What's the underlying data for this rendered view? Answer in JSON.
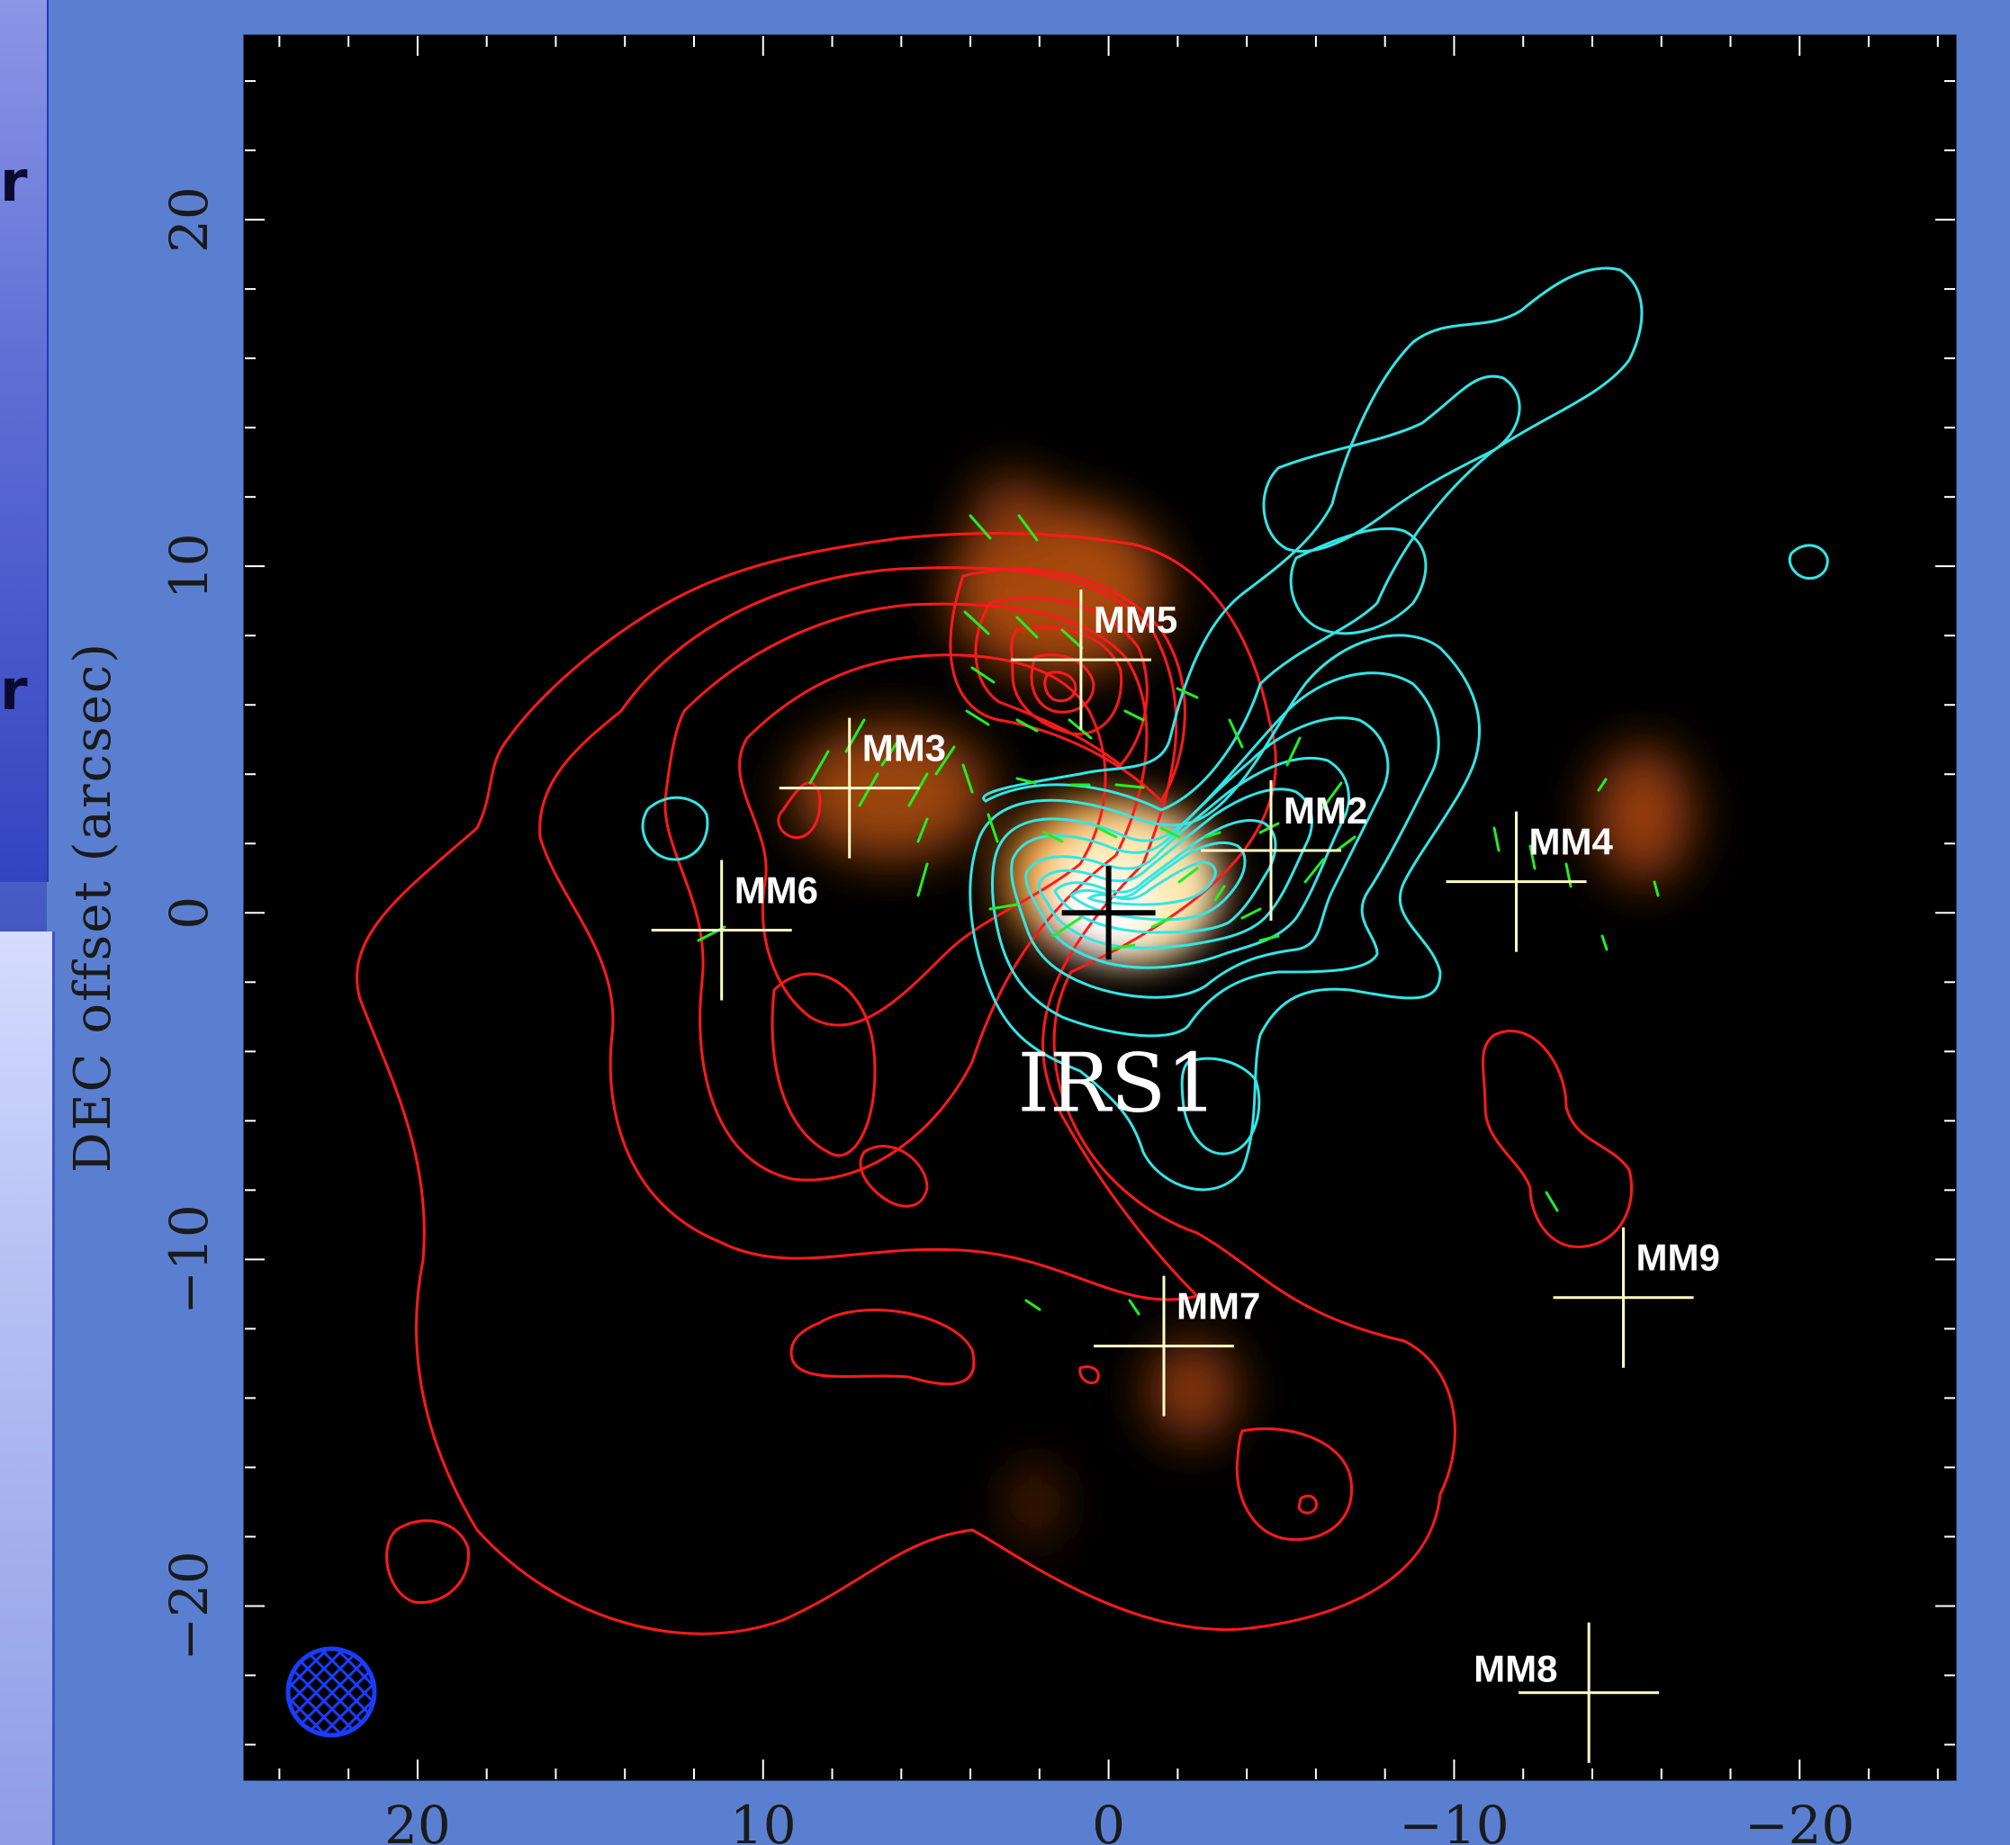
{
  "chart_data": {
    "type": "scatter",
    "title": "",
    "xlabel": "",
    "ylabel": "DEC offset (arcsec)",
    "xlim": [
      25,
      -24.5
    ],
    "ylim": [
      -25,
      25.3
    ],
    "x_ticks": [
      20,
      10,
      0,
      -10,
      -20
    ],
    "x_tick_labels": [
      "20",
      "10",
      "0",
      "−10",
      "−20"
    ],
    "y_ticks": [
      20,
      10,
      0,
      -10,
      -20
    ],
    "y_tick_labels": [
      "20",
      "10",
      "0",
      "−10",
      "−20"
    ],
    "background": "#000000",
    "sources": [
      {
        "name": "MM2",
        "x": -4.7,
        "y": 1.8
      },
      {
        "name": "MM3",
        "x": 7.5,
        "y": 3.6
      },
      {
        "name": "MM4",
        "x": -11.8,
        "y": 0.9
      },
      {
        "name": "MM5",
        "x": 0.8,
        "y": 7.3
      },
      {
        "name": "MM6",
        "x": 11.2,
        "y": -0.5
      },
      {
        "name": "MM7",
        "x": -1.6,
        "y": -12.5
      },
      {
        "name": "MM8",
        "x": -13.9,
        "y": -22.5
      },
      {
        "name": "MM9",
        "x": -14.9,
        "y": -11.1
      }
    ],
    "central_source": {
      "name": "IRS1",
      "x": 0,
      "y": 0
    },
    "beam": {
      "shape": "hatched-ellipse",
      "color": "#1a3cff"
    },
    "layers": [
      "orange image",
      "red contours",
      "cyan contours",
      "green polarization vectors"
    ],
    "colors": {
      "marker": "#ffffc8",
      "red_contour": "#ff1a1a",
      "cyan_contour": "#33e6e6",
      "vector": "#22ee22",
      "beam": "#1a3cff"
    }
  },
  "strip": {
    "glyph_1": "r",
    "glyph_2": "r"
  }
}
